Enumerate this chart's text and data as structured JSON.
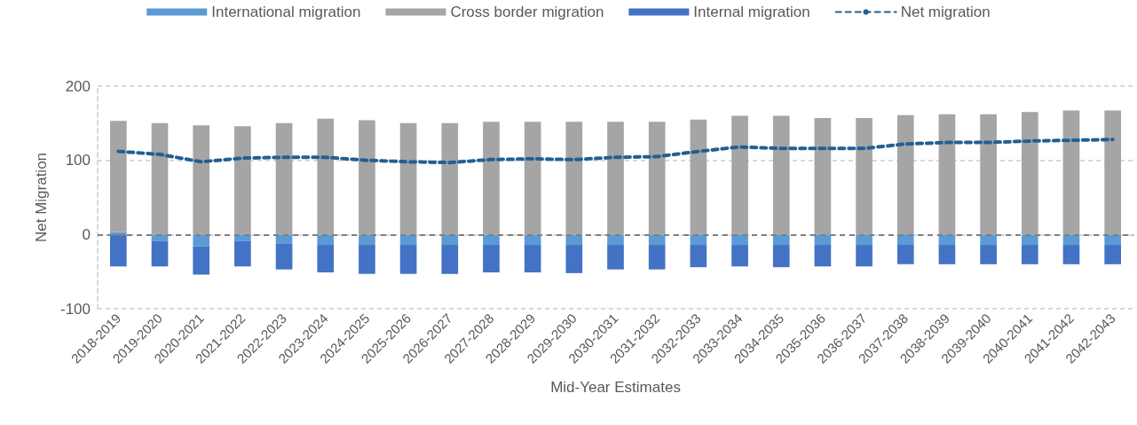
{
  "chart_data": {
    "type": "bar",
    "stacked": true,
    "xlabel": "Mid-Year Estimates",
    "ylabel": "Net Migration",
    "categories": [
      "2018-2019",
      "2019-2020",
      "2020-2021",
      "2021-2022",
      "2022-2023",
      "2023-2024",
      "2024-2025",
      "2025-2026",
      "2026-2027",
      "2027-2028",
      "2028-2029",
      "2029-2030",
      "2030-2031",
      "2031-2032",
      "2032-2033",
      "2033-2034",
      "2034-2035",
      "2035-2036",
      "2036-2037",
      "2037-2038",
      "2038-2039",
      "2039-2040",
      "2040-2041",
      "2041-2042",
      "2042-2043"
    ],
    "series": [
      {
        "name": "International migration",
        "color": "#5b9bd5",
        "values": [
          3,
          -9,
          -16,
          -9,
          -12,
          -14,
          -14,
          -14,
          -14,
          -14,
          -14,
          -14,
          -14,
          -14,
          -14,
          -14,
          -14,
          -14,
          -14,
          -14,
          -14,
          -14,
          -14,
          -14,
          -14
        ]
      },
      {
        "name": "Cross border migration",
        "color": "#a5a5a5",
        "values": [
          150,
          150,
          147,
          146,
          150,
          156,
          154,
          150,
          150,
          152,
          152,
          152,
          152,
          152,
          155,
          160,
          160,
          157,
          157,
          161,
          162,
          162,
          165,
          167,
          167
        ]
      },
      {
        "name": "Internal migration",
        "color": "#4472c4",
        "values": [
          -43,
          -34,
          -38,
          -34,
          -35,
          -37,
          -39,
          -39,
          -39,
          -37,
          -37,
          -38,
          -33,
          -33,
          -30,
          -29,
          -30,
          -29,
          -29,
          -26,
          -26,
          -26,
          -26,
          -26,
          -26
        ]
      },
      {
        "name": "Net migration",
        "type": "line",
        "color": "#255e91",
        "line_style": "dashed",
        "marker": "none",
        "values": [
          112,
          108,
          98,
          103,
          104,
          104,
          100,
          98,
          97,
          101,
          102,
          101,
          104,
          105,
          112,
          118,
          116,
          116,
          116,
          122,
          124,
          124,
          126,
          127,
          128
        ]
      }
    ],
    "ylim": [
      -100,
      200
    ],
    "yticks": [
      -100,
      0,
      100,
      200
    ],
    "grid": "y",
    "legend": "top",
    "ref_lines": [
      {
        "axis": "y",
        "value": 0,
        "color": "#7f7f7f",
        "line_style": "dashed"
      }
    ]
  }
}
